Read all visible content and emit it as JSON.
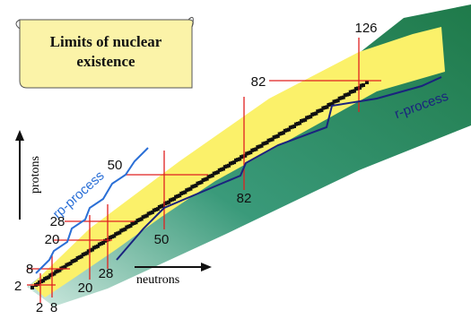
{
  "title": "Limits of nuclear existence",
  "axes": {
    "vertical": "protons",
    "horizontal": "neutrons"
  },
  "processes": {
    "rp": "rp-process",
    "r": "r-process"
  },
  "proton_magic": [
    "2",
    "8",
    "20",
    "28",
    "50",
    "82"
  ],
  "neutron_magic": [
    "2",
    "8",
    "20",
    "28",
    "50",
    "82",
    "126"
  ]
}
